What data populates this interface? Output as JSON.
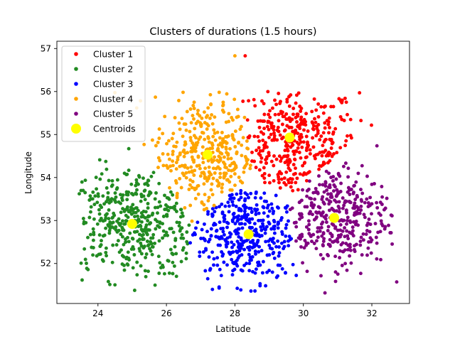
{
  "chart_data": {
    "type": "scatter",
    "title": "Clusters of durations (1.5 hours)",
    "xlabel": "Latitude",
    "ylabel": "Longitude",
    "xlim": [
      22.8,
      33.1
    ],
    "ylim": [
      51.07,
      57.17
    ],
    "xticks": [
      24,
      26,
      28,
      30,
      32
    ],
    "yticks": [
      52,
      53,
      54,
      55,
      56,
      57
    ],
    "grid": false,
    "legend_position": "top-left",
    "series": [
      {
        "name": "Cluster 1",
        "color": "#ff0000",
        "center": [
          29.7,
          54.75
        ],
        "spread": [
          0.95,
          0.7
        ],
        "point_count": 360,
        "region": "x from 28.3 to 31.0, y from 53.9 to 56.0"
      },
      {
        "name": "Cluster 2",
        "color": "#228b22",
        "center": [
          25.0,
          52.95
        ],
        "spread": [
          1.1,
          0.65
        ],
        "point_count": 420,
        "region": "x from 23.5 to 26.9, y from 51.6 to 54.3"
      },
      {
        "name": "Cluster 3",
        "color": "#0000ff",
        "center": [
          28.4,
          52.7
        ],
        "spread": [
          0.95,
          0.6
        ],
        "point_count": 380,
        "region": "x from 26.8 to 30.0, y from 51.4 to 53.9"
      },
      {
        "name": "Cluster 4",
        "color": "#ffa500",
        "center": [
          27.2,
          54.5
        ],
        "spread": [
          0.8,
          0.7
        ],
        "point_count": 360,
        "region": "x from 25.8 to 28.5, y from 53.2 to 56.0"
      },
      {
        "name": "Cluster 5",
        "color": "#800080",
        "center": [
          30.8,
          53.1
        ],
        "spread": [
          0.85,
          0.6
        ],
        "point_count": 360,
        "region": "x from 29.6 to 32.7, y from 51.3 to 54.5"
      }
    ],
    "outliers": [
      {
        "cluster": "Cluster 4",
        "x": 28.0,
        "y": 56.83
      },
      {
        "cluster": "Cluster 1",
        "x": 28.3,
        "y": 56.83
      },
      {
        "cluster": "Cluster 2",
        "x": 24.9,
        "y": 54.67
      }
    ],
    "centroids": {
      "name": "Centroids",
      "color": "#ffff00",
      "points": [
        {
          "x": 29.6,
          "y": 54.93
        },
        {
          "x": 25.0,
          "y": 52.92
        },
        {
          "x": 28.4,
          "y": 52.68
        },
        {
          "x": 27.2,
          "y": 54.53
        },
        {
          "x": 30.9,
          "y": 53.06
        }
      ]
    }
  }
}
